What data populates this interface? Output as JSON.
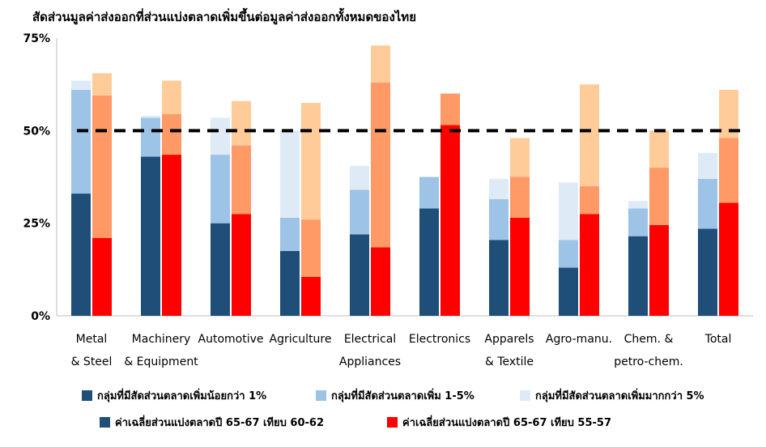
{
  "chart_data": {
    "type": "bar",
    "title": "สัดส่วนมูลค่าส่งออกที่ส่วนแบ่งตลาดเพิ่มขึ้นต่อมูลค่าส่งออกทั้งหมดของไทย",
    "xlabel": "",
    "ylabel": "",
    "ylim": [
      0,
      75
    ],
    "yticks": [
      "0%",
      "25%",
      "50%",
      "75%"
    ],
    "reference_line": 50,
    "categories": [
      [
        "Metal",
        "& Steel"
      ],
      [
        "Machinery",
        "& Equipment"
      ],
      [
        "Automotive"
      ],
      [
        "Agriculture"
      ],
      [
        "Electrical",
        "Appliances"
      ],
      [
        "Electronics"
      ],
      [
        "Apparels",
        "& Textile"
      ],
      [
        "Agro-manu."
      ],
      [
        "Chem. &",
        "petro-chem."
      ],
      [
        "Total"
      ]
    ],
    "group_A": {
      "label": "ค่าเฉลี่ยส่วนแบ่งตลาดปี 65-67 เทียบ 60-62",
      "series": [
        {
          "name": "กลุ่มที่มีสัดส่วนตลาดเพิ่มน้อยกว่า 1%",
          "values": [
            33,
            43,
            25,
            17.5,
            22,
            0,
            20.5,
            13,
            21.5,
            23.5
          ]
        },
        {
          "name": "กลุ่มที่มีสัดส่วนตลาดเพิ่ม 1-5%",
          "values": [
            28,
            10.5,
            18.5,
            9,
            12,
            8.5,
            11,
            7.5,
            7.5,
            13.5
          ]
        },
        {
          "name": "กลุ่มที่มีสัดส่วนตลาดเพิ่มมากกว่า 5%",
          "values": [
            2.5,
            0.5,
            10,
            23.5,
            6.5,
            0,
            5.5,
            15.5,
            2,
            7
          ]
        }
      ],
      "extra_values": [
        0,
        0,
        0,
        0,
        0,
        29,
        0,
        0,
        0,
        0
      ]
    },
    "group_B": {
      "label": "ค่าเฉลี่ยส่วนแบ่งตลาดปี 65-67 เทียบ 55-57",
      "values_lt1": [
        21,
        43.5,
        27.5,
        10.5,
        18.5,
        51.5,
        26.5,
        27.5,
        24.5,
        30.5
      ],
      "values_1to5": [
        38.5,
        11,
        18.5,
        15.5,
        44.5,
        8.5,
        11,
        7.5,
        15.5,
        17.5
      ],
      "values_gt5": [
        6,
        9,
        12,
        31.5,
        10,
        0,
        10.5,
        27.5,
        10,
        13
      ]
    },
    "colors": {
      "a_lt1": "#1f4e79",
      "a_1to5": "#9dc3e6",
      "a_gt5": "#deebf7",
      "b_lt1": "#ff0000",
      "b_1to5": "#ff9966",
      "b_gt5": "#ffcc99",
      "ref": "#000000"
    },
    "legend": [
      {
        "label": "กลุ่มที่มีสัดส่วนตลาดเพิ่มน้อยกว่า 1%",
        "color": "#1f4e79"
      },
      {
        "label": "กลุ่มที่มีสัดส่วนตลาดเพิ่ม 1-5%",
        "color": "#9dc3e6"
      },
      {
        "label": "กลุ่มที่มีสัดส่วนตลาดเพิ่มมากกว่า 5%",
        "color": "#deebf7"
      },
      {
        "label": "ค่าเฉลี่ยส่วนแบ่งตลาดปี 65-67 เทียบ 60-62",
        "color": "#1f4e79"
      },
      {
        "label": "ค่าเฉลี่ยส่วนแบ่งตลาดปี 65-67 เทียบ 55-57",
        "color": "#ff0000"
      }
    ]
  }
}
